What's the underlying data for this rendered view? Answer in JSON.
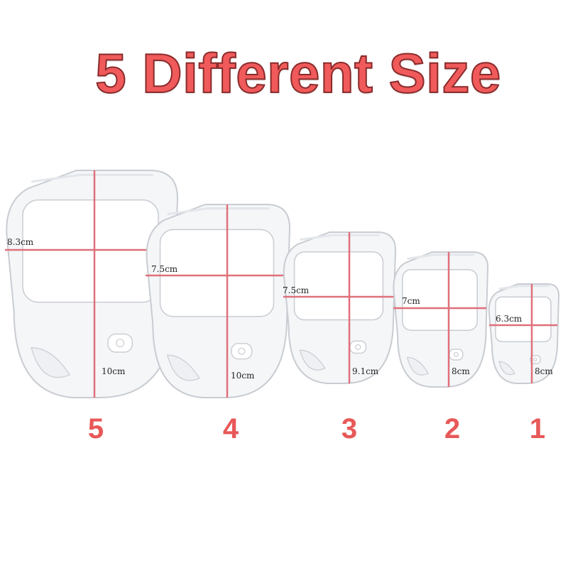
{
  "title": "5 Different Size",
  "colors": {
    "title_fill": "#f05a5a",
    "measure_line": "#e0707a",
    "shell_stroke": "#c9ccd2",
    "shell_fill": "#f4f6f8"
  },
  "sizes": [
    {
      "number": "5",
      "width_label": "8.3cm",
      "height_label": "10cm"
    },
    {
      "number": "4",
      "width_label": "7.5cm",
      "height_label": "10cm"
    },
    {
      "number": "3",
      "width_label": "7.5cm",
      "height_label": "9.1cm"
    },
    {
      "number": "2",
      "width_label": "7cm",
      "height_label": "8cm"
    },
    {
      "number": "1",
      "width_label": "6.3cm",
      "height_label": "8cm"
    }
  ]
}
